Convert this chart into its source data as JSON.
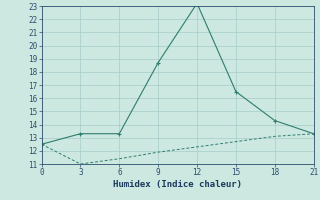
{
  "xlabel": "Humidex (Indice chaleur)",
  "ylabel": "",
  "background_color": "#cce8e0",
  "line_color": "#2e7d6e",
  "line1_x": [
    0,
    3,
    6,
    9,
    12,
    15,
    18,
    21
  ],
  "line1_y": [
    12.5,
    13.3,
    13.3,
    18.7,
    23.2,
    16.5,
    14.3,
    13.3
  ],
  "line2_x": [
    0,
    3,
    6,
    9,
    12,
    15,
    18,
    21
  ],
  "line2_y": [
    12.5,
    11.0,
    11.4,
    11.9,
    12.3,
    12.7,
    13.1,
    13.3
  ],
  "xlim": [
    0,
    21
  ],
  "ylim": [
    11,
    23
  ],
  "xticks": [
    0,
    3,
    6,
    9,
    12,
    15,
    18,
    21
  ],
  "yticks": [
    11,
    12,
    13,
    14,
    15,
    16,
    17,
    18,
    19,
    20,
    21,
    22,
    23
  ],
  "grid_color": "#a8ccca",
  "tick_color": "#2e4d6e",
  "label_color": "#1a3a5e",
  "font_size_tick": 5.5,
  "font_size_xlabel": 6.5,
  "marker": "+"
}
